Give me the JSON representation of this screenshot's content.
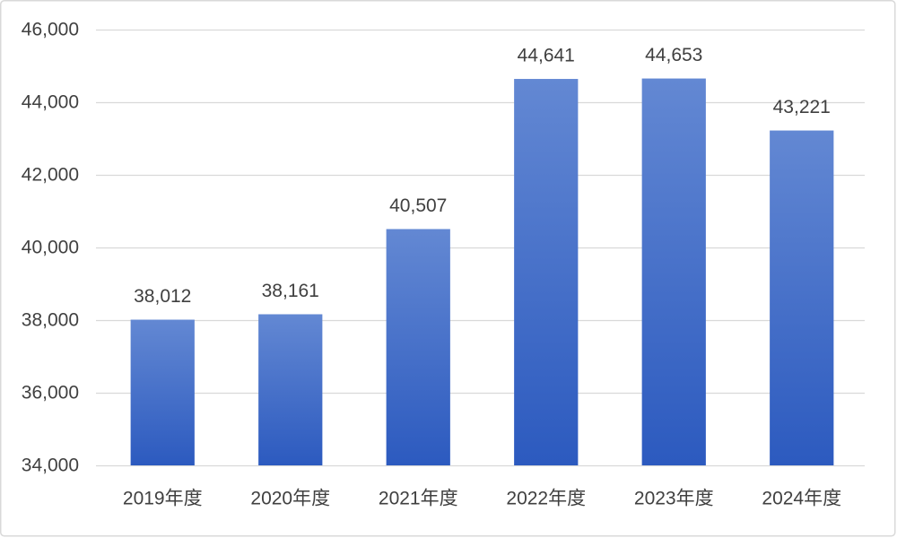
{
  "chart_data": {
    "type": "bar",
    "categories": [
      "2019年度",
      "2020年度",
      "2021年度",
      "2022年度",
      "2023年度",
      "2024年度"
    ],
    "values": [
      38012,
      38161,
      40507,
      44641,
      44653,
      43221
    ],
    "data_labels": [
      "38,012",
      "38,161",
      "40,507",
      "44,641",
      "44,653",
      "43,221"
    ],
    "ylim": [
      34000,
      46000
    ],
    "yticks": [
      34000,
      36000,
      38000,
      40000,
      42000,
      44000,
      46000
    ],
    "ytick_labels": [
      "34,000",
      "36,000",
      "38,000",
      "40,000",
      "42,000",
      "44,000",
      "46,000"
    ],
    "grid": true,
    "legend": false,
    "colors": {
      "bar_top": "#6388d3",
      "bar_bottom": "#2c5abf",
      "gridline": "#d9d9d9",
      "text": "#404040",
      "frame_border": "#d9d9d9"
    }
  }
}
